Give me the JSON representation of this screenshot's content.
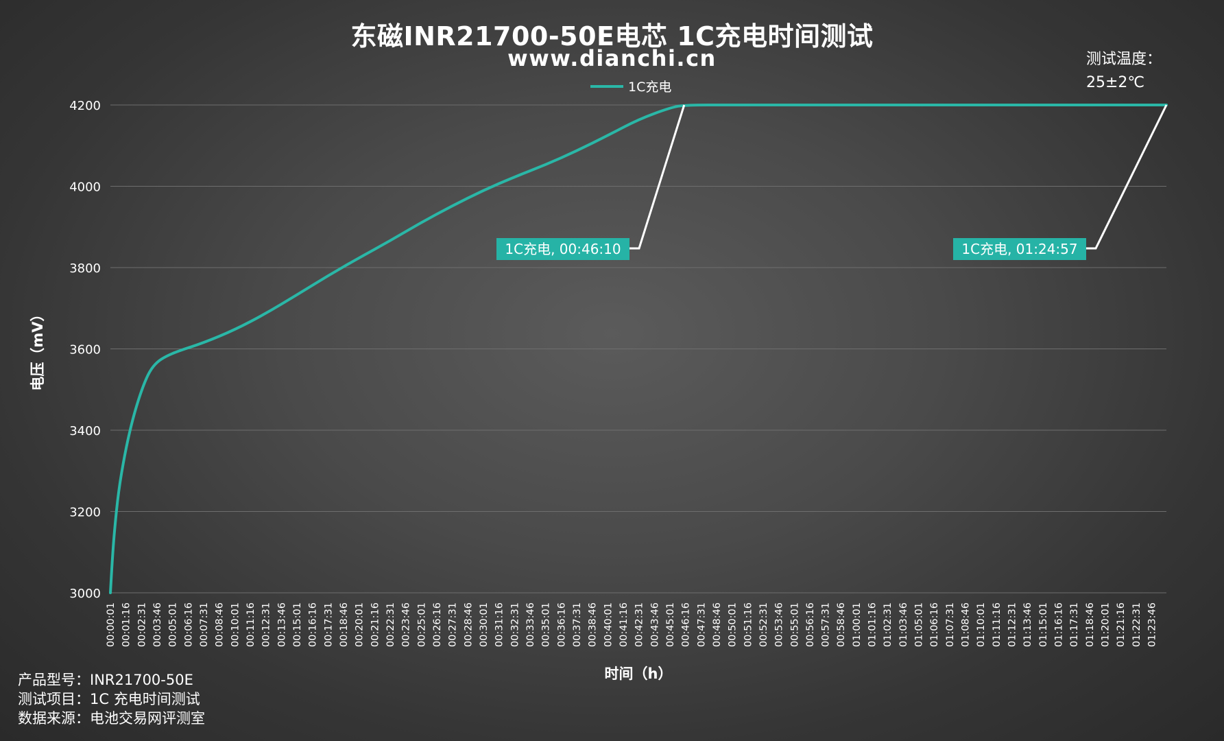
{
  "header": {
    "title": "东磁INR21700-50E电芯 1C充电时间测试",
    "subtitle": "www.dianchi.cn"
  },
  "temperature_note": {
    "line1": "测试温度：",
    "line2": "25±2℃"
  },
  "footer": {
    "line1": "产品型号：INR21700-50E",
    "line2": "测试项目：1C 充电时间测试",
    "line3": "数据来源：电池交易网评测室"
  },
  "colors": {
    "series": "#2ab7a7",
    "callout_bg": "#26b3a6",
    "leader": "#ffffff",
    "grid": "#6e6e6e"
  },
  "chart_data": {
    "type": "line",
    "title": "东磁INR21700-50E电芯 1C充电时间测试",
    "xlabel": "时间（h）",
    "ylabel": "电压（mV）",
    "ylim": [
      3000,
      4200
    ],
    "yticks": [
      3000,
      3200,
      3400,
      3600,
      3800,
      4000,
      4200
    ],
    "grid": "horizontal",
    "legend_position": "top-center",
    "x_tick_labels": [
      "00:00:01",
      "00:01:16",
      "00:02:31",
      "00:03:46",
      "00:05:01",
      "00:06:16",
      "00:07:31",
      "00:08:46",
      "00:10:01",
      "00:11:16",
      "00:12:31",
      "00:13:46",
      "00:15:01",
      "00:16:16",
      "00:17:31",
      "00:18:46",
      "00:20:01",
      "00:21:16",
      "00:22:31",
      "00:23:46",
      "00:25:01",
      "00:26:16",
      "00:27:31",
      "00:28:46",
      "00:30:01",
      "00:31:16",
      "00:32:31",
      "00:33:46",
      "00:35:01",
      "00:36:16",
      "00:37:31",
      "00:38:46",
      "00:40:01",
      "00:41:16",
      "00:42:31",
      "00:43:46",
      "00:45:01",
      "00:46:16",
      "00:47:31",
      "00:48:46",
      "00:50:01",
      "00:51:16",
      "00:52:31",
      "00:53:46",
      "00:55:01",
      "00:56:16",
      "00:57:31",
      "00:58:46",
      "01:00:01",
      "01:01:16",
      "01:02:31",
      "01:03:46",
      "01:05:01",
      "01:06:16",
      "01:07:31",
      "01:08:46",
      "01:10:01",
      "01:11:16",
      "01:12:31",
      "01:13:46",
      "01:15:01",
      "01:16:16",
      "01:17:31",
      "01:18:46",
      "01:20:01",
      "01:21:16",
      "01:22:31",
      "01:23:46"
    ],
    "series": [
      {
        "name": "1C充电",
        "x": [
          "00:00:01",
          "00:00:10",
          "00:00:20",
          "00:00:40",
          "00:01:10",
          "00:01:40",
          "00:02:10",
          "00:02:40",
          "00:03:10",
          "00:03:46",
          "00:04:30",
          "00:05:30",
          "00:07:31",
          "00:10:01",
          "00:12:31",
          "00:15:01",
          "00:17:31",
          "00:20:01",
          "00:22:31",
          "00:25:01",
          "00:27:31",
          "00:30:01",
          "00:32:31",
          "00:35:01",
          "00:37:31",
          "00:40:01",
          "00:42:31",
          "00:45:01",
          "00:46:10",
          "00:50:01",
          "01:00:01",
          "01:10:01",
          "01:20:01",
          "01:24:57"
        ],
        "values": [
          3000,
          3080,
          3150,
          3250,
          3340,
          3410,
          3465,
          3510,
          3545,
          3568,
          3582,
          3595,
          3615,
          3647,
          3687,
          3733,
          3780,
          3824,
          3866,
          3911,
          3952,
          3990,
          4023,
          4053,
          4087,
          4125,
          4165,
          4193,
          4200,
          4200,
          4200,
          4200,
          4200,
          4200
        ]
      }
    ],
    "annotations": [
      {
        "label": "1C充电, 00:46:10",
        "x": "00:46:10",
        "y": 4200
      },
      {
        "label": "1C充电, 01:24:57",
        "x": "01:24:57",
        "y": 4200
      }
    ]
  }
}
